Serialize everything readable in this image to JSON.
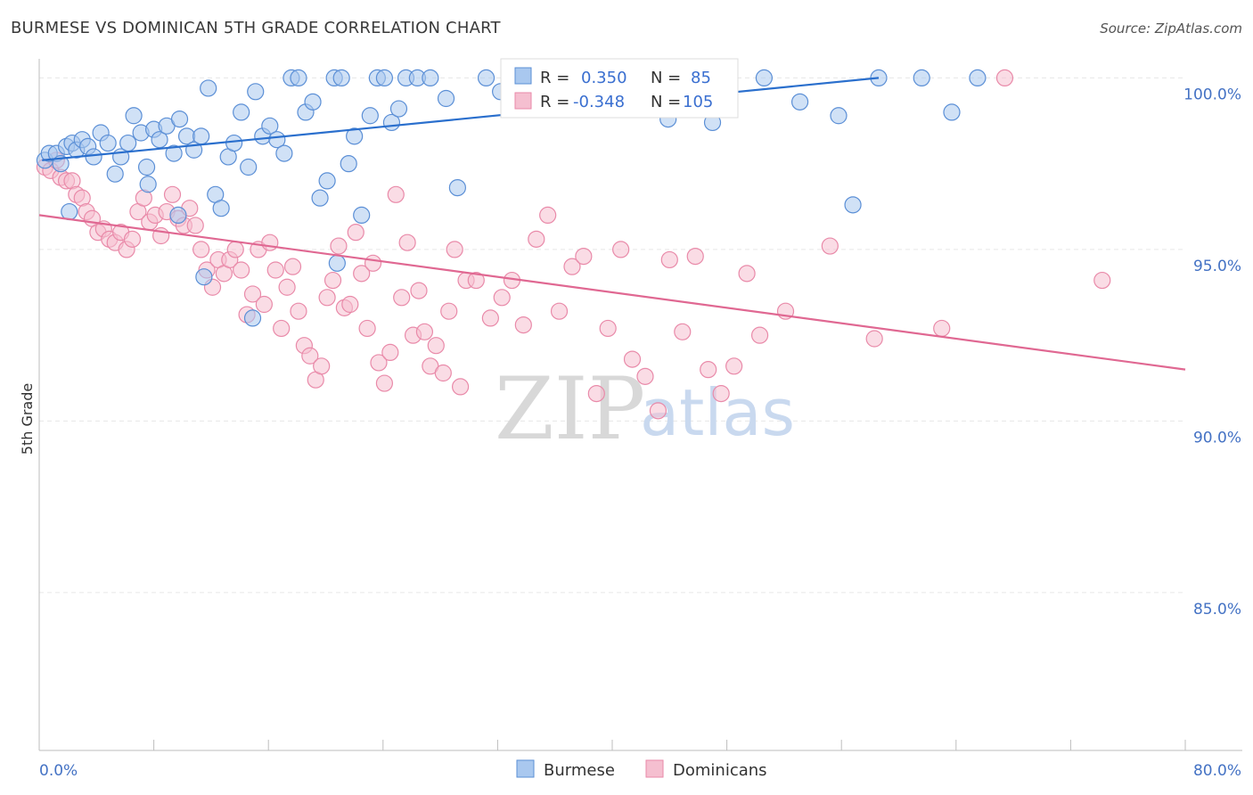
{
  "header": {
    "title": "BURMESE VS DOMINICAN 5TH GRADE CORRELATION CHART",
    "source": "Source: ZipAtlas.com"
  },
  "watermark": {
    "part1": "ZIP",
    "part2": "atlas"
  },
  "colors": {
    "burmese_fill": "#a9c8ef",
    "burmese_stroke": "#5b8fd6",
    "burmese_line": "#2a6fcd",
    "dominican_fill": "#f5bfd0",
    "dominican_stroke": "#e98aa9",
    "dominican_line": "#e06892",
    "grid": "#e6e6e6",
    "tick_label": "#4472c4"
  },
  "stats": {
    "burmese": {
      "r_label": "R =",
      "r_value": "0.350",
      "n_label": "N =",
      "n_value": "85"
    },
    "dominican": {
      "r_label": "R =",
      "r_value": "-0.348",
      "n_label": "N =",
      "n_value": "105"
    }
  },
  "chart_data": {
    "type": "scatter",
    "title": "BURMESE VS DOMINICAN 5TH GRADE CORRELATION CHART",
    "xlabel": "",
    "ylabel": "5th Grade",
    "xlim": [
      0,
      80
    ],
    "ylim": [
      80.4,
      100.4
    ],
    "x_tick_labels": [
      "0.0%",
      "80.0%"
    ],
    "y_ticks": [
      100,
      95,
      90,
      85
    ],
    "y_tick_labels": [
      "100.0%",
      "95.0%",
      "90.0%",
      "85.0%"
    ],
    "grid": true,
    "legend_position": "bottom-center",
    "series": [
      {
        "name": "Burmese",
        "r": 0.35,
        "n": 85,
        "trend": {
          "x": [
            0.2,
            58.6
          ],
          "y": [
            97.6,
            100.0
          ]
        },
        "points": [
          [
            0.4,
            97.6
          ],
          [
            0.7,
            97.8
          ],
          [
            1.2,
            97.8
          ],
          [
            1.5,
            97.5
          ],
          [
            1.9,
            98.0
          ],
          [
            2.3,
            98.1
          ],
          [
            2.6,
            97.9
          ],
          [
            3.0,
            98.2
          ],
          [
            3.4,
            98.0
          ],
          [
            3.8,
            97.7
          ],
          [
            4.3,
            98.4
          ],
          [
            4.8,
            98.1
          ],
          [
            5.3,
            97.2
          ],
          [
            5.7,
            97.7
          ],
          [
            6.2,
            98.1
          ],
          [
            6.6,
            98.9
          ],
          [
            7.1,
            98.4
          ],
          [
            7.5,
            97.4
          ],
          [
            8.0,
            98.5
          ],
          [
            8.4,
            98.2
          ],
          [
            8.9,
            98.6
          ],
          [
            9.4,
            97.8
          ],
          [
            9.8,
            98.8
          ],
          [
            10.3,
            98.3
          ],
          [
            10.8,
            97.9
          ],
          [
            11.3,
            98.3
          ],
          [
            11.8,
            99.7
          ],
          [
            12.3,
            96.6
          ],
          [
            12.7,
            96.2
          ],
          [
            13.2,
            97.7
          ],
          [
            13.6,
            98.1
          ],
          [
            14.1,
            99.0
          ],
          [
            14.6,
            97.4
          ],
          [
            15.1,
            99.6
          ],
          [
            15.6,
            98.3
          ],
          [
            16.1,
            98.6
          ],
          [
            16.6,
            98.2
          ],
          [
            17.1,
            97.8
          ],
          [
            17.6,
            100.0
          ],
          [
            18.1,
            100.0
          ],
          [
            18.6,
            99.0
          ],
          [
            19.1,
            99.3
          ],
          [
            19.6,
            96.5
          ],
          [
            20.1,
            97.0
          ],
          [
            20.6,
            100.0
          ],
          [
            21.1,
            100.0
          ],
          [
            21.6,
            97.5
          ],
          [
            22.0,
            98.3
          ],
          [
            22.5,
            96.0
          ],
          [
            23.1,
            98.9
          ],
          [
            23.6,
            100.0
          ],
          [
            24.1,
            100.0
          ],
          [
            24.6,
            98.7
          ],
          [
            25.1,
            99.1
          ],
          [
            25.6,
            100.0
          ],
          [
            26.4,
            100.0
          ],
          [
            27.3,
            100.0
          ],
          [
            28.4,
            99.4
          ],
          [
            29.2,
            96.8
          ],
          [
            31.2,
            100.0
          ],
          [
            32.2,
            99.6
          ],
          [
            33.9,
            99.3
          ],
          [
            35.1,
            100.0
          ],
          [
            36.8,
            99.7
          ],
          [
            38.5,
            100.0
          ],
          [
            40.3,
            100.0
          ],
          [
            42.1,
            100.0
          ],
          [
            43.9,
            98.8
          ],
          [
            45.9,
            100.0
          ],
          [
            47.0,
            98.7
          ],
          [
            48.2,
            99.9
          ],
          [
            50.6,
            100.0
          ],
          [
            53.1,
            99.3
          ],
          [
            55.8,
            98.9
          ],
          [
            58.6,
            100.0
          ],
          [
            61.6,
            100.0
          ],
          [
            63.7,
            99.0
          ],
          [
            65.5,
            100.0
          ],
          [
            7.6,
            96.9
          ],
          [
            9.7,
            96.0
          ],
          [
            11.5,
            94.2
          ],
          [
            14.9,
            93.0
          ],
          [
            20.8,
            94.6
          ],
          [
            56.8,
            96.3
          ],
          [
            2.1,
            96.1
          ]
        ]
      },
      {
        "name": "Dominicans",
        "r": -0.348,
        "n": 105,
        "trend": {
          "x": [
            0.0,
            80.0
          ],
          "y": [
            96.0,
            91.5
          ]
        },
        "points": [
          [
            0.4,
            97.4
          ],
          [
            0.8,
            97.3
          ],
          [
            1.2,
            97.6
          ],
          [
            1.5,
            97.1
          ],
          [
            1.9,
            97.0
          ],
          [
            2.3,
            97.0
          ],
          [
            2.6,
            96.6
          ],
          [
            3.0,
            96.5
          ],
          [
            3.3,
            96.1
          ],
          [
            3.7,
            95.9
          ],
          [
            4.1,
            95.5
          ],
          [
            4.5,
            95.6
          ],
          [
            4.9,
            95.3
          ],
          [
            5.3,
            95.2
          ],
          [
            5.7,
            95.5
          ],
          [
            6.1,
            95.0
          ],
          [
            6.5,
            95.3
          ],
          [
            6.9,
            96.1
          ],
          [
            7.3,
            96.5
          ],
          [
            7.7,
            95.8
          ],
          [
            8.1,
            96.0
          ],
          [
            8.5,
            95.4
          ],
          [
            8.9,
            96.1
          ],
          [
            9.3,
            96.6
          ],
          [
            9.7,
            95.9
          ],
          [
            10.1,
            95.7
          ],
          [
            10.5,
            96.2
          ],
          [
            10.9,
            95.7
          ],
          [
            11.3,
            95.0
          ],
          [
            11.7,
            94.4
          ],
          [
            12.1,
            93.9
          ],
          [
            12.5,
            94.7
          ],
          [
            12.9,
            94.3
          ],
          [
            13.3,
            94.7
          ],
          [
            13.7,
            95.0
          ],
          [
            14.1,
            94.4
          ],
          [
            14.5,
            93.1
          ],
          [
            14.9,
            93.7
          ],
          [
            15.3,
            95.0
          ],
          [
            15.7,
            93.4
          ],
          [
            16.1,
            95.2
          ],
          [
            16.5,
            94.4
          ],
          [
            16.9,
            92.7
          ],
          [
            17.3,
            93.9
          ],
          [
            17.7,
            94.5
          ],
          [
            18.1,
            93.2
          ],
          [
            18.5,
            92.2
          ],
          [
            18.9,
            91.9
          ],
          [
            19.3,
            91.2
          ],
          [
            19.7,
            91.6
          ],
          [
            20.1,
            93.6
          ],
          [
            20.5,
            94.1
          ],
          [
            20.9,
            95.1
          ],
          [
            21.3,
            93.3
          ],
          [
            21.7,
            93.4
          ],
          [
            22.1,
            95.5
          ],
          [
            22.5,
            94.3
          ],
          [
            22.9,
            92.7
          ],
          [
            23.3,
            94.6
          ],
          [
            23.7,
            91.7
          ],
          [
            24.1,
            91.1
          ],
          [
            24.5,
            92.0
          ],
          [
            24.9,
            96.6
          ],
          [
            25.3,
            93.6
          ],
          [
            25.7,
            95.2
          ],
          [
            26.1,
            92.5
          ],
          [
            26.5,
            93.8
          ],
          [
            26.9,
            92.6
          ],
          [
            27.3,
            91.6
          ],
          [
            27.7,
            92.2
          ],
          [
            28.2,
            91.4
          ],
          [
            28.6,
            93.2
          ],
          [
            29.0,
            95.0
          ],
          [
            29.4,
            91.0
          ],
          [
            29.8,
            94.1
          ],
          [
            30.5,
            94.1
          ],
          [
            31.5,
            93.0
          ],
          [
            32.3,
            93.6
          ],
          [
            33.0,
            94.1
          ],
          [
            33.8,
            92.8
          ],
          [
            34.7,
            95.3
          ],
          [
            35.5,
            96.0
          ],
          [
            36.3,
            93.2
          ],
          [
            37.2,
            94.5
          ],
          [
            38.0,
            94.8
          ],
          [
            38.9,
            90.8
          ],
          [
            39.7,
            92.7
          ],
          [
            40.6,
            95.0
          ],
          [
            41.4,
            91.8
          ],
          [
            42.3,
            91.3
          ],
          [
            43.2,
            90.3
          ],
          [
            44.0,
            94.7
          ],
          [
            44.9,
            92.6
          ],
          [
            45.8,
            94.8
          ],
          [
            46.7,
            91.5
          ],
          [
            47.6,
            90.8
          ],
          [
            48.5,
            91.6
          ],
          [
            49.4,
            94.3
          ],
          [
            50.3,
            92.5
          ],
          [
            52.1,
            93.2
          ],
          [
            55.2,
            95.1
          ],
          [
            58.3,
            92.4
          ],
          [
            63.0,
            92.7
          ],
          [
            67.4,
            100.0
          ],
          [
            74.2,
            94.1
          ]
        ]
      }
    ]
  }
}
